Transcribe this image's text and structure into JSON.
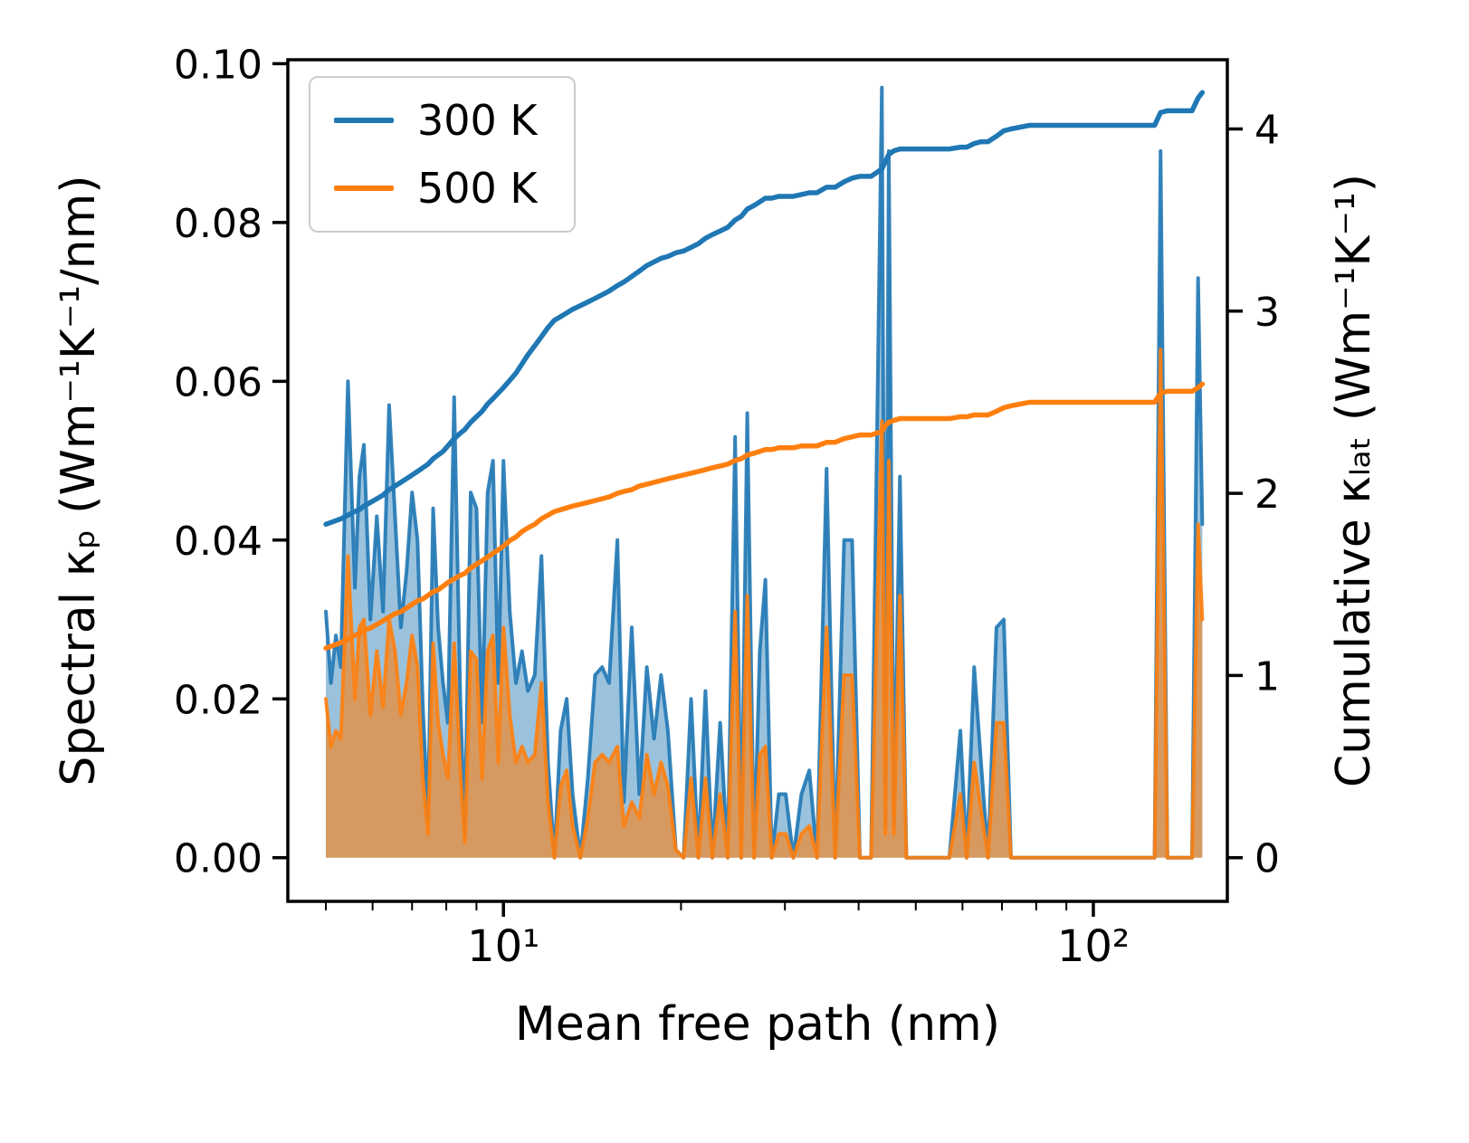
{
  "figure": {
    "xlabel": "Mean free path (nm)",
    "ylabel_left": "Spectral κₚ (Wm⁻¹K⁻¹/nm)",
    "ylabel_right": "Cumulative κₗₐₜ (Wm⁻¹K⁻¹)",
    "legend": [
      {
        "label": "300 K",
        "color": "#1f77b4"
      },
      {
        "label": "500 K",
        "color": "#ff7f0e"
      }
    ]
  },
  "chart_data": {
    "type": "line",
    "x_scale": "log",
    "xlabel": "Mean free path (nm)",
    "ylabel_left": "Spectral κₚ (Wm⁻¹K⁻¹/nm)",
    "ylabel_right": "Cumulative κₗₐₜ (Wm⁻¹K⁻¹)",
    "xlim": [
      4.31,
      168.7
    ],
    "ylim_left": [
      -0.0055,
      0.1005
    ],
    "ylim_right": [
      -0.24,
      4.38
    ],
    "grid": false,
    "legend_position": "upper left",
    "x_ticks": {
      "values": [
        10,
        100
      ],
      "labels": [
        "10¹",
        "10²"
      ]
    },
    "x_minor_ticks": [
      5,
      6,
      7,
      8,
      9,
      20,
      30,
      40,
      50,
      60,
      70,
      80,
      90
    ],
    "y_left_ticks": {
      "values": [
        0,
        0.02,
        0.04,
        0.06,
        0.08,
        0.1
      ],
      "labels": [
        "0.00",
        "0.02",
        "0.04",
        "0.06",
        "0.08",
        "0.10"
      ]
    },
    "y_right_ticks": {
      "values": [
        0,
        1,
        2,
        3,
        4
      ],
      "labels": [
        "0",
        "1",
        "2",
        "3",
        "4"
      ]
    },
    "x": [
      5.0,
      5.1,
      5.2,
      5.3,
      5.45,
      5.6,
      5.7,
      5.8,
      5.95,
      6.1,
      6.25,
      6.4,
      6.55,
      6.7,
      6.85,
      7.0,
      7.15,
      7.3,
      7.45,
      7.6,
      7.75,
      7.9,
      8.05,
      8.25,
      8.45,
      8.6,
      8.8,
      9.0,
      9.2,
      9.4,
      9.6,
      9.8,
      10.0,
      10.25,
      10.5,
      10.75,
      11.0,
      11.3,
      11.6,
      11.9,
      12.2,
      12.5,
      12.8,
      13.1,
      13.5,
      13.9,
      14.3,
      14.7,
      15.1,
      15.6,
      16.0,
      16.5,
      17.0,
      17.5,
      18.0,
      18.5,
      19.0,
      19.6,
      20.2,
      20.8,
      21.4,
      22.0,
      22.6,
      23.3,
      24.0,
      24.7,
      25.3,
      25.9,
      26.6,
      27.2,
      27.8,
      28.5,
      29.3,
      30.1,
      31.0,
      32.0,
      33.0,
      34.0,
      35.3,
      36.5,
      37.8,
      39.0,
      40.2,
      42.0,
      43.8,
      44.4,
      45.0,
      45.9,
      47.0,
      48.2,
      52.0,
      57.0,
      59.5,
      61.0,
      62.8,
      64.5,
      66.3,
      68.5,
      70.5,
      72.5,
      78.0,
      90.0,
      105.0,
      120.0,
      127.0,
      130.0,
      133.5,
      140.0,
      147.0,
      150.5,
      153.0
    ],
    "series": [
      {
        "name": "Spectral 300 K",
        "legend_label": "300 K",
        "axis": "left",
        "style": "area",
        "color": "#1f77b4",
        "fill_opacity": 0.45,
        "values": [
          0.031,
          0.022,
          0.028,
          0.024,
          0.06,
          0.034,
          0.048,
          0.052,
          0.03,
          0.043,
          0.031,
          0.057,
          0.043,
          0.029,
          0.036,
          0.046,
          0.04,
          0.019,
          0.005,
          0.044,
          0.029,
          0.022,
          0.017,
          0.058,
          0.02,
          0.003,
          0.046,
          0.044,
          0.017,
          0.046,
          0.05,
          0.022,
          0.05,
          0.031,
          0.022,
          0.026,
          0.021,
          0.023,
          0.038,
          0.012,
          0.0,
          0.016,
          0.02,
          0.008,
          0.0,
          0.01,
          0.023,
          0.024,
          0.022,
          0.04,
          0.007,
          0.029,
          0.008,
          0.024,
          0.015,
          0.023,
          0.016,
          0.001,
          0.0,
          0.02,
          0.0,
          0.021,
          0.0,
          0.017,
          0.0,
          0.053,
          0.0,
          0.056,
          0.0,
          0.026,
          0.035,
          0.0,
          0.008,
          0.008,
          0.0,
          0.008,
          0.011,
          0.0,
          0.049,
          0.0,
          0.04,
          0.04,
          0.0,
          0.0,
          0.097,
          0.004,
          0.089,
          0.004,
          0.048,
          0.0,
          0.0,
          0.0,
          0.016,
          0.0,
          0.024,
          0.012,
          0.0,
          0.029,
          0.03,
          0.0,
          0.0,
          0.0,
          0.0,
          0.0,
          0.0,
          0.089,
          0.0,
          0.0,
          0.0,
          0.073,
          0.042
        ]
      },
      {
        "name": "Spectral 500 K",
        "legend_label": "500 K",
        "axis": "left",
        "style": "area",
        "color": "#ff7f0e",
        "fill_opacity": 0.6,
        "values": [
          0.02,
          0.014,
          0.016,
          0.015,
          0.038,
          0.02,
          0.029,
          0.03,
          0.018,
          0.026,
          0.019,
          0.03,
          0.026,
          0.018,
          0.022,
          0.028,
          0.024,
          0.01,
          0.003,
          0.027,
          0.017,
          0.013,
          0.01,
          0.027,
          0.011,
          0.002,
          0.026,
          0.025,
          0.01,
          0.026,
          0.028,
          0.012,
          0.029,
          0.018,
          0.012,
          0.014,
          0.012,
          0.013,
          0.022,
          0.007,
          0.0,
          0.009,
          0.011,
          0.004,
          0.0,
          0.005,
          0.012,
          0.013,
          0.012,
          0.014,
          0.004,
          0.007,
          0.005,
          0.013,
          0.008,
          0.012,
          0.009,
          0.001,
          0.0,
          0.01,
          0.0,
          0.01,
          0.0,
          0.008,
          0.0,
          0.031,
          0.0,
          0.033,
          0.0,
          0.013,
          0.014,
          0.0,
          0.003,
          0.003,
          0.0,
          0.003,
          0.004,
          0.0,
          0.029,
          0.0,
          0.023,
          0.023,
          0.0,
          0.0,
          0.055,
          0.003,
          0.05,
          0.003,
          0.033,
          0.0,
          0.0,
          0.0,
          0.008,
          0.0,
          0.012,
          0.006,
          0.0,
          0.017,
          0.017,
          0.0,
          0.0,
          0.0,
          0.0,
          0.0,
          0.0,
          0.064,
          0.0,
          0.0,
          0.0,
          0.042,
          0.03
        ]
      },
      {
        "name": "Cumulative 300 K",
        "legend_label": "300 K",
        "axis": "right",
        "style": "line",
        "color": "#1f77b4",
        "values": [
          1.83,
          1.84,
          1.85,
          1.86,
          1.88,
          1.9,
          1.91,
          1.93,
          1.95,
          1.97,
          1.99,
          2.02,
          2.04,
          2.06,
          2.08,
          2.1,
          2.12,
          2.14,
          2.16,
          2.19,
          2.21,
          2.23,
          2.26,
          2.3,
          2.33,
          2.35,
          2.39,
          2.42,
          2.45,
          2.49,
          2.52,
          2.55,
          2.58,
          2.62,
          2.66,
          2.71,
          2.76,
          2.81,
          2.86,
          2.91,
          2.95,
          2.97,
          2.99,
          3.01,
          3.03,
          3.05,
          3.07,
          3.09,
          3.11,
          3.14,
          3.16,
          3.19,
          3.22,
          3.25,
          3.27,
          3.29,
          3.3,
          3.32,
          3.33,
          3.35,
          3.37,
          3.4,
          3.42,
          3.44,
          3.46,
          3.5,
          3.52,
          3.56,
          3.58,
          3.6,
          3.62,
          3.62,
          3.63,
          3.63,
          3.63,
          3.64,
          3.65,
          3.65,
          3.68,
          3.68,
          3.71,
          3.73,
          3.74,
          3.74,
          3.78,
          3.82,
          3.86,
          3.88,
          3.89,
          3.89,
          3.89,
          3.89,
          3.9,
          3.9,
          3.92,
          3.93,
          3.93,
          3.96,
          3.99,
          4.0,
          4.02,
          4.02,
          4.02,
          4.02,
          4.02,
          4.09,
          4.1,
          4.1,
          4.1,
          4.17,
          4.2
        ]
      },
      {
        "name": "Cumulative 500 K",
        "legend_label": "500 K",
        "axis": "right",
        "style": "line",
        "color": "#ff7f0e",
        "values": [
          1.15,
          1.16,
          1.17,
          1.18,
          1.2,
          1.22,
          1.23,
          1.25,
          1.26,
          1.28,
          1.3,
          1.32,
          1.34,
          1.35,
          1.37,
          1.39,
          1.41,
          1.42,
          1.44,
          1.46,
          1.47,
          1.49,
          1.51,
          1.53,
          1.55,
          1.56,
          1.59,
          1.61,
          1.63,
          1.65,
          1.67,
          1.69,
          1.71,
          1.74,
          1.76,
          1.79,
          1.81,
          1.83,
          1.86,
          1.88,
          1.9,
          1.91,
          1.92,
          1.93,
          1.94,
          1.95,
          1.96,
          1.97,
          1.98,
          2.0,
          2.01,
          2.02,
          2.04,
          2.05,
          2.06,
          2.07,
          2.08,
          2.09,
          2.1,
          2.11,
          2.12,
          2.13,
          2.14,
          2.15,
          2.16,
          2.18,
          2.19,
          2.21,
          2.22,
          2.23,
          2.24,
          2.24,
          2.25,
          2.25,
          2.25,
          2.26,
          2.26,
          2.26,
          2.28,
          2.28,
          2.3,
          2.31,
          2.32,
          2.32,
          2.34,
          2.37,
          2.39,
          2.4,
          2.41,
          2.41,
          2.41,
          2.41,
          2.42,
          2.42,
          2.43,
          2.43,
          2.43,
          2.45,
          2.47,
          2.48,
          2.5,
          2.5,
          2.5,
          2.5,
          2.5,
          2.55,
          2.56,
          2.56,
          2.56,
          2.58,
          2.6
        ]
      }
    ]
  }
}
